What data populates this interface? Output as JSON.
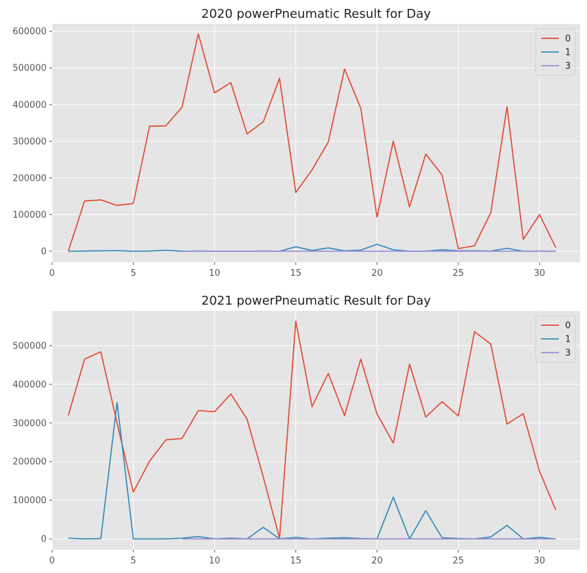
{
  "chart_data": [
    {
      "type": "line",
      "title": "2020 powerPneumatic Result for Day",
      "xlabel": "",
      "ylabel": "",
      "xlim": [
        0,
        32.5
      ],
      "ylim": [
        -30000,
        620000
      ],
      "xticks": [
        0,
        5,
        10,
        15,
        20,
        25,
        30
      ],
      "yticks": [
        0,
        100000,
        200000,
        300000,
        400000,
        500000,
        600000
      ],
      "grid": true,
      "legend_position": "top-right",
      "series": [
        {
          "name": "0",
          "color": "#E24A33",
          "x": [
            1,
            2,
            3,
            4,
            5,
            6,
            7,
            8,
            9,
            10,
            11,
            12,
            13,
            14,
            15,
            16,
            17,
            18,
            19,
            20,
            21,
            22,
            23,
            24,
            25,
            26,
            27,
            28,
            29,
            30,
            31
          ],
          "values": [
            0,
            137000,
            140000,
            125000,
            130000,
            341000,
            342000,
            393000,
            593000,
            432000,
            460000,
            320000,
            353000,
            472000,
            160000,
            222000,
            298000,
            497000,
            390000,
            93000,
            300000,
            121000,
            265000,
            208000,
            7000,
            15000,
            105000,
            394000,
            32000,
            100000,
            10000
          ]
        },
        {
          "name": "1",
          "color": "#348ABD",
          "x": [
            1,
            2,
            3,
            4,
            5,
            6,
            7,
            8,
            9,
            10,
            11,
            12,
            13,
            14,
            15,
            16,
            17,
            18,
            19,
            20,
            21,
            22,
            23,
            24,
            25,
            26,
            27,
            28,
            29,
            30,
            31
          ],
          "values": [
            0,
            500,
            1000,
            1500,
            0,
            500,
            2500,
            0,
            500,
            0,
            0,
            0,
            500,
            0,
            12000,
            2000,
            9000,
            1000,
            3000,
            19000,
            4000,
            0,
            0,
            4000,
            1000,
            1000,
            500,
            8000,
            0,
            500,
            0
          ]
        },
        {
          "name": "3",
          "color": "#988ED5",
          "x": [
            8,
            9,
            10,
            11,
            12,
            13,
            14,
            15,
            16,
            17,
            18,
            19,
            20,
            21,
            22,
            23,
            24,
            25,
            26,
            27,
            28,
            29,
            30,
            31
          ],
          "values": [
            0,
            0,
            0,
            0,
            0,
            0,
            0,
            0,
            0,
            0,
            0,
            0,
            0,
            0,
            0,
            0,
            0,
            0,
            0,
            0,
            0,
            0,
            0,
            0
          ]
        }
      ]
    },
    {
      "type": "line",
      "title": "2021 powerPneumatic Result for Day",
      "xlabel": "",
      "ylabel": "",
      "xlim": [
        0,
        32.5
      ],
      "ylim": [
        -28000,
        590000
      ],
      "xticks": [
        0,
        5,
        10,
        15,
        20,
        25,
        30
      ],
      "yticks": [
        0,
        100000,
        200000,
        300000,
        400000,
        500000
      ],
      "grid": true,
      "legend_position": "top-right",
      "series": [
        {
          "name": "0",
          "color": "#E24A33",
          "x": [
            1,
            2,
            3,
            4,
            5,
            6,
            7,
            8,
            9,
            10,
            11,
            12,
            13,
            14,
            15,
            16,
            17,
            18,
            19,
            20,
            21,
            22,
            23,
            24,
            25,
            26,
            27,
            28,
            29,
            30,
            31
          ],
          "values": [
            319000,
            465000,
            484000,
            300000,
            121000,
            201000,
            256000,
            260000,
            332000,
            329000,
            375000,
            310000,
            160000,
            2000,
            563000,
            342000,
            428000,
            319000,
            465000,
            323000,
            248000,
            452000,
            315000,
            355000,
            318000,
            536000,
            504000,
            297000,
            324000,
            175000,
            75000
          ]
        },
        {
          "name": "1",
          "color": "#348ABD",
          "x": [
            1,
            2,
            3,
            4,
            5,
            6,
            7,
            8,
            9,
            10,
            11,
            12,
            13,
            14,
            15,
            16,
            17,
            18,
            19,
            20,
            21,
            22,
            23,
            24,
            25,
            26,
            27,
            28,
            29,
            30,
            31
          ],
          "values": [
            2000,
            0,
            1000,
            353000,
            0,
            0,
            0,
            2000,
            6000,
            0,
            2000,
            0,
            30000,
            0,
            4000,
            0,
            2000,
            3000,
            1000,
            0,
            108000,
            0,
            73000,
            3000,
            1000,
            0,
            5000,
            35000,
            0,
            4000,
            0
          ]
        },
        {
          "name": "3",
          "color": "#988ED5",
          "x": [
            8,
            9,
            10,
            11,
            12,
            13,
            14,
            15,
            16,
            17,
            18,
            19,
            20,
            21,
            22,
            23,
            24,
            25,
            26,
            27,
            28,
            29,
            30,
            31
          ],
          "values": [
            0,
            0,
            0,
            0,
            0,
            0,
            0,
            0,
            0,
            0,
            0,
            0,
            0,
            0,
            0,
            0,
            0,
            0,
            0,
            0,
            0,
            0,
            0,
            0
          ]
        }
      ]
    }
  ]
}
